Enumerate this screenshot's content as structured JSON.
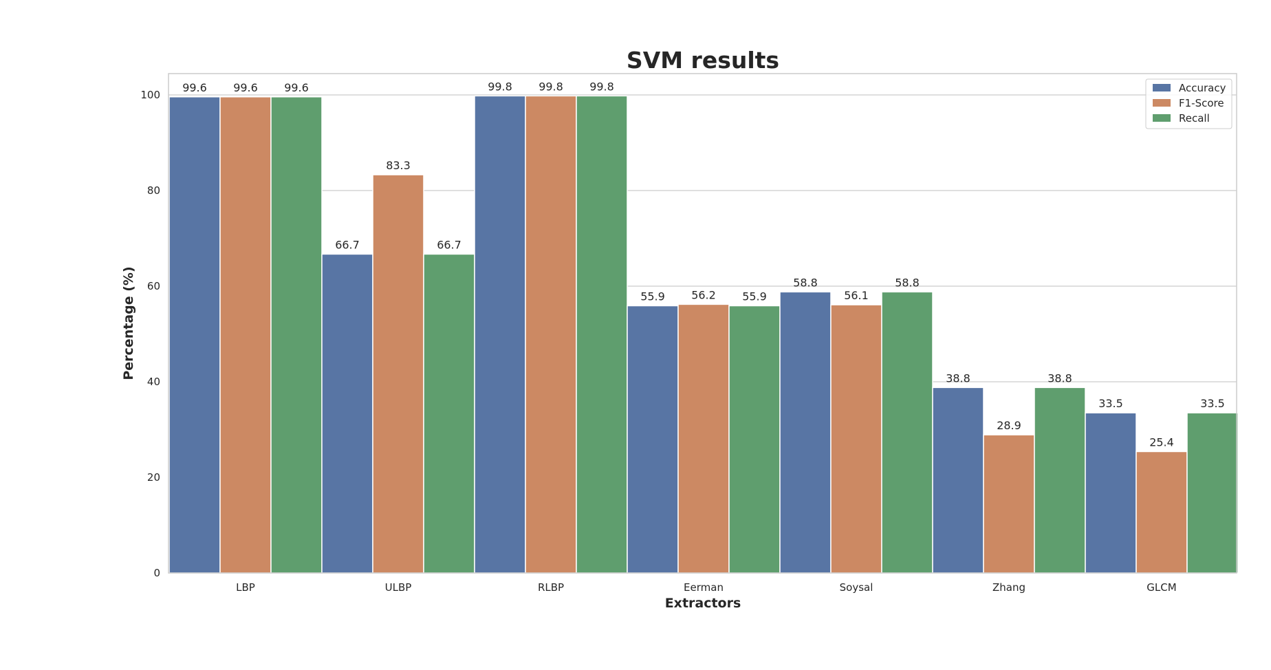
{
  "chart_data": {
    "type": "bar",
    "title": "SVM results",
    "xlabel": "Extractors",
    "ylabel": "Percentage (%)",
    "categories": [
      "LBP",
      "ULBP",
      "RLBP",
      "Eerman",
      "Soysal",
      "Zhang",
      "GLCM"
    ],
    "series": [
      {
        "name": "Accuracy",
        "color": "#5875a4",
        "values": [
          99.6,
          66.7,
          99.8,
          55.9,
          58.8,
          38.8,
          33.5
        ]
      },
      {
        "name": "F1-Score",
        "color": "#cc8963",
        "values": [
          99.6,
          83.3,
          99.8,
          56.2,
          56.1,
          28.9,
          25.4
        ]
      },
      {
        "name": "Recall",
        "color": "#5f9e6e",
        "values": [
          99.6,
          66.7,
          99.8,
          55.9,
          58.8,
          38.8,
          33.5
        ]
      }
    ],
    "ylim": [
      0,
      105
    ],
    "yticks": [
      0,
      20,
      40,
      60,
      80,
      100
    ],
    "grid": "horizontal",
    "legend_position": "top-right",
    "data_labels": true
  }
}
